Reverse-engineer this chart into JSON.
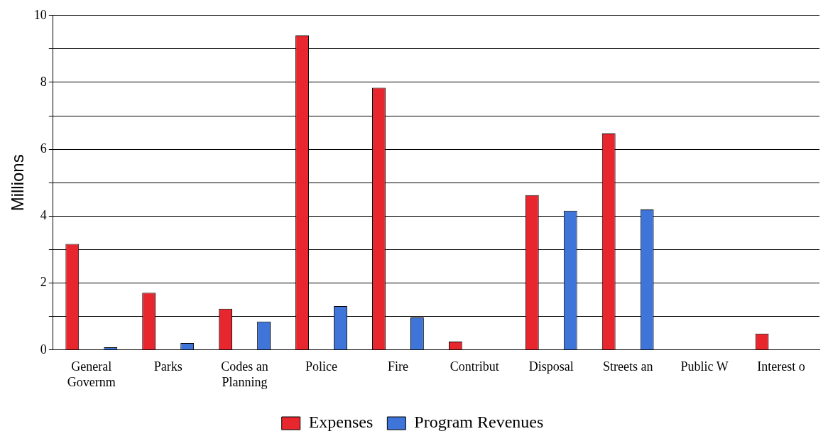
{
  "chart_data": {
    "type": "bar",
    "ylabel": "Millions",
    "categories": [
      "General Governm",
      "Parks",
      "Codes an Planning",
      "Police",
      "Fire",
      "Contribut",
      "Disposal",
      "Streets an",
      "Public W",
      "Interest o"
    ],
    "series": [
      {
        "name": "Expenses",
        "color": "#e8262e",
        "values": [
          3.17,
          1.71,
          1.23,
          9.4,
          7.84,
          0.25,
          4.63,
          6.47,
          null,
          0.49
        ]
      },
      {
        "name": "Program Revenues",
        "color": "#3f74d8",
        "values": [
          0.08,
          0.21,
          0.85,
          1.31,
          0.97,
          null,
          4.16,
          4.2,
          null,
          null
        ]
      }
    ],
    "ylim": [
      0,
      10
    ],
    "yticks": [
      0,
      {
        "value": 1,
        "label": null
      },
      2,
      {
        "value": 3,
        "label": null
      },
      4,
      {
        "value": 5,
        "label": null
      },
      6,
      {
        "value": 7,
        "label": null
      },
      8,
      {
        "value": 9,
        "label": null
      },
      10
    ],
    "grid": "y",
    "legend": "bottom"
  }
}
